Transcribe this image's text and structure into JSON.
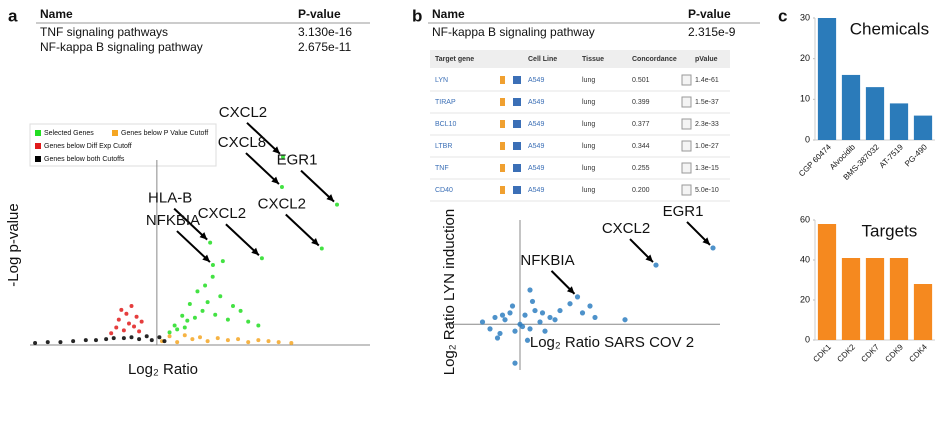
{
  "panel_labels": [
    "a",
    "b",
    "c"
  ],
  "table_a": {
    "header": [
      "Name",
      "P-value"
    ],
    "rows": [
      [
        "TNF signaling pathways",
        "3.130e-16"
      ],
      [
        "NF-kappa B signaling pathway",
        "2.675e-11"
      ]
    ]
  },
  "table_b": {
    "header": [
      "Name",
      "P-value"
    ],
    "rows": [
      [
        "NF-kappa B signaling pathway",
        "2.315e-9"
      ]
    ]
  },
  "screenshot_table": {
    "columns": [
      "Target gene",
      "Cell Line",
      "Tissue",
      "Concordance",
      "pValue"
    ],
    "rows": [
      [
        "LYN",
        "A549",
        "lung",
        "0.501",
        "1.4e-61"
      ],
      [
        "TIRAP",
        "A549",
        "lung",
        "0.399",
        "1.5e-37"
      ],
      [
        "BCL10",
        "A549",
        "lung",
        "0.377",
        "2.3e-33"
      ],
      [
        "LTBR",
        "A549",
        "lung",
        "0.344",
        "1.0e-27"
      ],
      [
        "TNF",
        "A549",
        "lung",
        "0.255",
        "1.3e-15"
      ],
      [
        "CD40",
        "A549",
        "lung",
        "0.200",
        "5.0e-10"
      ]
    ]
  },
  "chart_data": [
    {
      "type": "scatter",
      "x_label": "Log₂ Ratio",
      "y_label": "-Log p-value",
      "xlim": [
        -5,
        8.4
      ],
      "ylim": [
        0,
        20
      ],
      "series": [
        {
          "name": "Selected Genes",
          "color": "#22dd22",
          "x": [
            0.5,
            0.7,
            0.8,
            1.0,
            1.1,
            1.2,
            1.3,
            1.5,
            1.6,
            1.8,
            1.9,
            2.0,
            2.2,
            2.3,
            2.5,
            2.6,
            2.8,
            3.0,
            3.3,
            3.6,
            4.0,
            4.14,
            4.93,
            4.97,
            6.5,
            7.1,
            2.21,
            2.1
          ],
          "values": [
            1.3,
            2.0,
            1.6,
            3.0,
            1.8,
            2.5,
            4.2,
            2.8,
            5.5,
            3.5,
            6.1,
            4.4,
            7.0,
            3.1,
            5.0,
            8.6,
            2.6,
            4.0,
            3.5,
            2.4,
            2.0,
            8.9,
            16.2,
            19.3,
            9.9,
            14.4,
            8.2,
            10.5
          ]
        },
        {
          "name": "Genes below P Value Cutoff",
          "color": "#f5a623",
          "x": [
            0.2,
            0.5,
            0.8,
            1.1,
            1.4,
            1.7,
            2.0,
            2.4,
            2.8,
            3.2,
            3.6,
            4.0,
            4.4,
            4.8,
            5.3
          ],
          "values": [
            0.4,
            0.9,
            0.3,
            1.0,
            0.6,
            0.8,
            0.4,
            0.7,
            0.5,
            0.6,
            0.3,
            0.5,
            0.4,
            0.3,
            0.2
          ]
        },
        {
          "name": "Genes below Diff Exp Cutoff",
          "color": "#e01b1b",
          "x": [
            -1.8,
            -1.6,
            -1.5,
            -1.3,
            -1.2,
            -1.1,
            -1.0,
            -0.9,
            -0.8,
            -0.7,
            -0.6,
            -1.4
          ],
          "values": [
            1.2,
            1.8,
            2.6,
            1.5,
            3.2,
            2.2,
            4.0,
            1.9,
            2.9,
            1.4,
            2.4,
            3.6
          ]
        },
        {
          "name": "Genes below both Cutoffs",
          "color": "#000000",
          "x": [
            -4.8,
            -4.3,
            -3.8,
            -3.3,
            -2.8,
            -2.4,
            -2.0,
            -1.7,
            -1.3,
            -1.0,
            -0.7,
            -0.4,
            -0.2,
            0.1,
            0.3
          ],
          "values": [
            0.2,
            0.3,
            0.3,
            0.4,
            0.5,
            0.5,
            0.6,
            0.7,
            0.7,
            0.8,
            0.6,
            0.9,
            0.5,
            0.8,
            0.4
          ]
        }
      ],
      "annotations": [
        {
          "text": "CXCL2",
          "x": 4.97,
          "y": 19.3
        },
        {
          "text": "CXCL8",
          "x": 4.93,
          "y": 16.2
        },
        {
          "text": "EGR1",
          "x": 7.1,
          "y": 14.4
        },
        {
          "text": "CXCL2",
          "x": 6.5,
          "y": 9.9
        },
        {
          "text": "HLA-B",
          "x": 2.1,
          "y": 10.5
        },
        {
          "text": "NFKBIA",
          "x": 2.21,
          "y": 8.2
        },
        {
          "text": "CXCL2",
          "x": 4.14,
          "y": 8.9
        }
      ]
    },
    {
      "type": "scatter",
      "x_label": "Log₂ Ratio SARS COV 2",
      "y_label": "Log₂ Ratio LYN induction",
      "xlim": [
        -3,
        8
      ],
      "ylim": [
        -2,
        5
      ],
      "series": [
        {
          "color": "#2f7fc1",
          "x": [
            -1.5,
            -1.2,
            -1.0,
            -0.8,
            -0.6,
            -0.4,
            -0.2,
            0,
            0.2,
            0.4,
            0.6,
            0.8,
            1.0,
            1.2,
            1.4,
            -0.9,
            -0.3,
            0.3,
            0.9,
            0.5,
            -0.7,
            0.1,
            1.6,
            2.0,
            2.3,
            2.5,
            2.8,
            3.0,
            4.2,
            -0.2,
            0.4,
            7.72,
            5.44
          ],
          "values": [
            0.1,
            -0.2,
            0.3,
            -0.4,
            0.2,
            0.5,
            -0.3,
            0,
            0.4,
            -0.2,
            0.6,
            0.1,
            -0.3,
            0.3,
            0.2,
            -0.6,
            0.8,
            -0.7,
            0.5,
            1.0,
            0.4,
            -0.1,
            0.6,
            0.9,
            1.2,
            0.5,
            0.8,
            0.3,
            0.2,
            -1.7,
            1.5,
            3.34,
            2.59
          ]
        }
      ],
      "annotations": [
        {
          "text": "EGR1",
          "x": 7.72,
          "y": 3.34
        },
        {
          "text": "CXCL2",
          "x": 5.44,
          "y": 2.59
        },
        {
          "text": "NFKBIA",
          "x": 2.3,
          "y": 1.2
        }
      ]
    },
    {
      "type": "bar",
      "title": "Chemicals",
      "color": "#2b7bba",
      "categories": [
        "CGP 60474",
        "Alvocidib",
        "BMS-387032",
        "AT-7519",
        "PG-490"
      ],
      "values": [
        30,
        16,
        13,
        9,
        6
      ],
      "ylim": [
        0,
        30
      ],
      "yticks": [
        0,
        10,
        20,
        30
      ]
    },
    {
      "type": "bar",
      "title": "Targets",
      "color": "#f5891f",
      "categories": [
        "CDK1",
        "CDK2",
        "CDK7",
        "CDK9",
        "CDK4"
      ],
      "values": [
        58,
        41,
        41,
        41,
        28
      ],
      "ylim": [
        0,
        60
      ],
      "yticks": [
        0,
        20,
        40,
        60
      ]
    }
  ]
}
